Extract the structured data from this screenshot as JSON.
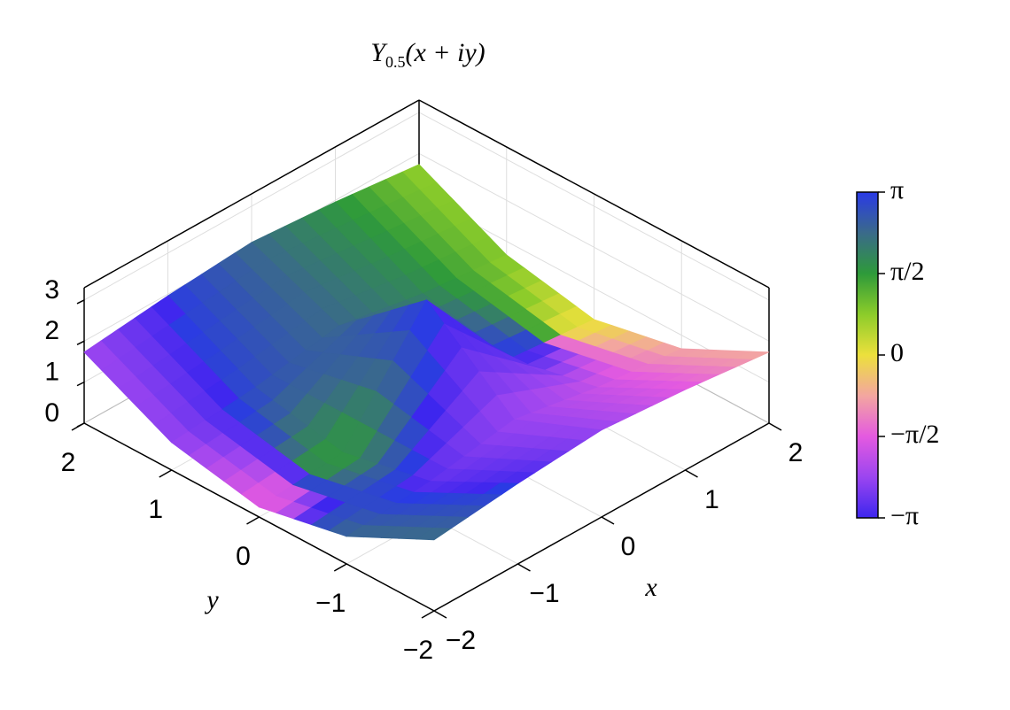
{
  "chart_data": {
    "type": "surface",
    "title": {
      "base": "Y",
      "subscript": "0.5",
      "argument": "(x + iy)"
    },
    "x_label": "x",
    "y_label": "y",
    "x": [
      -2,
      -1,
      0,
      1,
      2
    ],
    "y": [
      -2,
      -1,
      0,
      1,
      2
    ],
    "z": [
      [
        1.73,
        1.96,
        2.12,
        1.96,
        1.73
      ],
      [
        0.67,
        0.87,
        1.23,
        0.87,
        0.67
      ],
      [
        0.24,
        0.43,
        3,
        0.43,
        0.24
      ],
      [
        0.67,
        0.87,
        1.23,
        0.87,
        0.67
      ],
      [
        1.73,
        1.96,
        2.12,
        1.96,
        1.73
      ]
    ],
    "phase": [
      [
        2.31,
        -3.11,
        -2.36,
        -1.61,
        -0.73
      ],
      [
        2.37,
        -2.83,
        -2.36,
        -1.88,
        -0.8
      ],
      [
        -1.57,
        1.57,
        3.14,
        3.14,
        0
      ],
      [
        -2.37,
        2.83,
        2.36,
        1.88,
        0.8
      ],
      [
        -2.31,
        3.11,
        2.36,
        1.61,
        0.73
      ]
    ],
    "xlim": [
      -2,
      2
    ],
    "ylim": [
      -2,
      2
    ],
    "zlim": [
      0,
      3.3
    ],
    "xticks": [
      {
        "value": -2,
        "label": "−2"
      },
      {
        "value": -1,
        "label": "−1"
      },
      0,
      1,
      2
    ],
    "yticks": [
      {
        "value": -2,
        "label": "−2"
      },
      {
        "value": -1,
        "label": "−1"
      },
      0,
      1,
      2
    ],
    "zticks": [
      0,
      1,
      2,
      3
    ],
    "grid": true,
    "colormap": [
      "#3d26ee",
      "#9b45f0",
      "#e45ae0",
      "#f3a6a0",
      "#ece03c",
      "#8ccc2a",
      "#2e9a3a",
      "#3a6a8a",
      "#2a3ae6"
    ],
    "clim": [
      -3.14159,
      3.14159
    ],
    "cticks": [
      {
        "value": -3.14159,
        "label": "−π"
      },
      {
        "value": -1.5708,
        "label": "−π/2"
      },
      0,
      {
        "value": 1.5708,
        "label": "π/2"
      },
      {
        "value": 3.14159,
        "label": "π"
      }
    ]
  }
}
